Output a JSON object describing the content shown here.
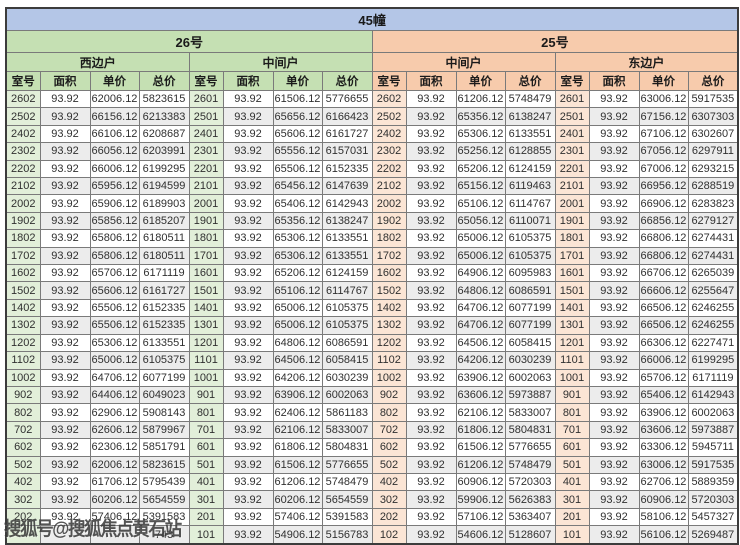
{
  "page": {
    "title": "45幢",
    "watermark": "搜狐号@搜狐焦点黄石站"
  },
  "columns": [
    "室号",
    "面积",
    "单价",
    "总价"
  ],
  "colors": {
    "title_bg": "#b4c6e7",
    "building26_bg": "#c5e0b3",
    "building25_bg": "#f7cbac",
    "room_col_green": "#e2efd9",
    "room_col_peach": "#fbe5d5",
    "stripe_gray": "#ececec"
  },
  "buildings": [
    {
      "label": "26号",
      "groups": [
        {
          "label": "西边户",
          "rows": [
            [
              "2602",
              "93.92",
              "62006.12",
              "5823615"
            ],
            [
              "2502",
              "93.92",
              "66156.12",
              "6213383"
            ],
            [
              "2402",
              "93.92",
              "66106.12",
              "6208687"
            ],
            [
              "2302",
              "93.92",
              "66056.12",
              "6203991"
            ],
            [
              "2202",
              "93.92",
              "66006.12",
              "6199295"
            ],
            [
              "2102",
              "93.92",
              "65956.12",
              "6194599"
            ],
            [
              "2002",
              "93.92",
              "65906.12",
              "6189903"
            ],
            [
              "1902",
              "93.92",
              "65856.12",
              "6185207"
            ],
            [
              "1802",
              "93.92",
              "65806.12",
              "6180511"
            ],
            [
              "1702",
              "93.92",
              "65806.12",
              "6180511"
            ],
            [
              "1602",
              "93.92",
              "65706.12",
              "6171119"
            ],
            [
              "1502",
              "93.92",
              "65606.12",
              "6161727"
            ],
            [
              "1402",
              "93.92",
              "65506.12",
              "6152335"
            ],
            [
              "1302",
              "93.92",
              "65506.12",
              "6152335"
            ],
            [
              "1202",
              "93.92",
              "65306.12",
              "6133551"
            ],
            [
              "1102",
              "93.92",
              "65006.12",
              "6105375"
            ],
            [
              "1002",
              "93.92",
              "64706.12",
              "6077199"
            ],
            [
              "902",
              "93.92",
              "64406.12",
              "6049023"
            ],
            [
              "802",
              "93.92",
              "62906.12",
              "5908143"
            ],
            [
              "702",
              "93.92",
              "62606.12",
              "5879967"
            ],
            [
              "602",
              "93.92",
              "62306.12",
              "5851791"
            ],
            [
              "502",
              "93.92",
              "62006.12",
              "5823615"
            ],
            [
              "402",
              "93.92",
              "61706.12",
              "5795439"
            ],
            [
              "302",
              "93.92",
              "60206.12",
              "5654559"
            ],
            [
              "202",
              "93.92",
              "57406.12",
              "5391583"
            ],
            [
              "",
              "",
              "",
              "743"
            ]
          ]
        },
        {
          "label": "中间户",
          "rows": [
            [
              "2601",
              "93.92",
              "61506.12",
              "5776655"
            ],
            [
              "2501",
              "93.92",
              "65656.12",
              "6166423"
            ],
            [
              "2401",
              "93.92",
              "65606.12",
              "6161727"
            ],
            [
              "2301",
              "93.92",
              "65556.12",
              "6157031"
            ],
            [
              "2201",
              "93.92",
              "65506.12",
              "6152335"
            ],
            [
              "2101",
              "93.92",
              "65456.12",
              "6147639"
            ],
            [
              "2001",
              "93.92",
              "65406.12",
              "6142943"
            ],
            [
              "1901",
              "93.92",
              "65356.12",
              "6138247"
            ],
            [
              "1801",
              "93.92",
              "65306.12",
              "6133551"
            ],
            [
              "1701",
              "93.92",
              "65306.12",
              "6133551"
            ],
            [
              "1601",
              "93.92",
              "65206.12",
              "6124159"
            ],
            [
              "1501",
              "93.92",
              "65106.12",
              "6114767"
            ],
            [
              "1401",
              "93.92",
              "65006.12",
              "6105375"
            ],
            [
              "1301",
              "93.92",
              "65006.12",
              "6105375"
            ],
            [
              "1201",
              "93.92",
              "64806.12",
              "6086591"
            ],
            [
              "1101",
              "93.92",
              "64506.12",
              "6058415"
            ],
            [
              "1001",
              "93.92",
              "64206.12",
              "6030239"
            ],
            [
              "901",
              "93.92",
              "63906.12",
              "6002063"
            ],
            [
              "801",
              "93.92",
              "62406.12",
              "5861183"
            ],
            [
              "701",
              "93.92",
              "62106.12",
              "5833007"
            ],
            [
              "601",
              "93.92",
              "61806.12",
              "5804831"
            ],
            [
              "501",
              "93.92",
              "61506.12",
              "5776655"
            ],
            [
              "401",
              "93.92",
              "61206.12",
              "5748479"
            ],
            [
              "301",
              "93.92",
              "60206.12",
              "5654559"
            ],
            [
              "201",
              "93.92",
              "57406.12",
              "5391583"
            ],
            [
              "101",
              "93.92",
              "54906.12",
              "5156783"
            ]
          ]
        }
      ]
    },
    {
      "label": "25号",
      "groups": [
        {
          "label": "中间户",
          "rows": [
            [
              "2602",
              "93.92",
              "61206.12",
              "5748479"
            ],
            [
              "2502",
              "93.92",
              "65356.12",
              "6138247"
            ],
            [
              "2402",
              "93.92",
              "65306.12",
              "6133551"
            ],
            [
              "2302",
              "93.92",
              "65256.12",
              "6128855"
            ],
            [
              "2202",
              "93.92",
              "65206.12",
              "6124159"
            ],
            [
              "2102",
              "93.92",
              "65156.12",
              "6119463"
            ],
            [
              "2002",
              "93.92",
              "65106.12",
              "6114767"
            ],
            [
              "1902",
              "93.92",
              "65056.12",
              "6110071"
            ],
            [
              "1802",
              "93.92",
              "65006.12",
              "6105375"
            ],
            [
              "1702",
              "93.92",
              "65006.12",
              "6105375"
            ],
            [
              "1602",
              "93.92",
              "64906.12",
              "6095983"
            ],
            [
              "1502",
              "93.92",
              "64806.12",
              "6086591"
            ],
            [
              "1402",
              "93.92",
              "64706.12",
              "6077199"
            ],
            [
              "1302",
              "93.92",
              "64706.12",
              "6077199"
            ],
            [
              "1202",
              "93.92",
              "64506.12",
              "6058415"
            ],
            [
              "1102",
              "93.92",
              "64206.12",
              "6030239"
            ],
            [
              "1002",
              "93.92",
              "63906.12",
              "6002063"
            ],
            [
              "902",
              "93.92",
              "63606.12",
              "5973887"
            ],
            [
              "802",
              "93.92",
              "62106.12",
              "5833007"
            ],
            [
              "702",
              "93.92",
              "61806.12",
              "5804831"
            ],
            [
              "602",
              "93.92",
              "61506.12",
              "5776655"
            ],
            [
              "502",
              "93.92",
              "61206.12",
              "5748479"
            ],
            [
              "402",
              "93.92",
              "60906.12",
              "5720303"
            ],
            [
              "302",
              "93.92",
              "59906.12",
              "5626383"
            ],
            [
              "202",
              "93.92",
              "57106.12",
              "5363407"
            ],
            [
              "102",
              "93.92",
              "54606.12",
              "5128607"
            ]
          ]
        },
        {
          "label": "东边户",
          "rows": [
            [
              "2601",
              "93.92",
              "63006.12",
              "5917535"
            ],
            [
              "2501",
              "93.92",
              "67156.12",
              "6307303"
            ],
            [
              "2401",
              "93.92",
              "67106.12",
              "6302607"
            ],
            [
              "2301",
              "93.92",
              "67056.12",
              "6297911"
            ],
            [
              "2201",
              "93.92",
              "67006.12",
              "6293215"
            ],
            [
              "2101",
              "93.92",
              "66956.12",
              "6288519"
            ],
            [
              "2001",
              "93.92",
              "66906.12",
              "6283823"
            ],
            [
              "1901",
              "93.92",
              "66856.12",
              "6279127"
            ],
            [
              "1801",
              "93.92",
              "66806.12",
              "6274431"
            ],
            [
              "1701",
              "93.92",
              "66806.12",
              "6274431"
            ],
            [
              "1601",
              "93.92",
              "66706.12",
              "6265039"
            ],
            [
              "1501",
              "93.92",
              "66606.12",
              "6255647"
            ],
            [
              "1401",
              "93.92",
              "66506.12",
              "6246255"
            ],
            [
              "1301",
              "93.92",
              "66506.12",
              "6246255"
            ],
            [
              "1201",
              "93.92",
              "66306.12",
              "6227471"
            ],
            [
              "1101",
              "93.92",
              "66006.12",
              "6199295"
            ],
            [
              "1001",
              "93.92",
              "65706.12",
              "6171119"
            ],
            [
              "901",
              "93.92",
              "65406.12",
              "6142943"
            ],
            [
              "801",
              "93.92",
              "63906.12",
              "6002063"
            ],
            [
              "701",
              "93.92",
              "63606.12",
              "5973887"
            ],
            [
              "601",
              "93.92",
              "63306.12",
              "5945711"
            ],
            [
              "501",
              "93.92",
              "63006.12",
              "5917535"
            ],
            [
              "401",
              "93.92",
              "62706.12",
              "5889359"
            ],
            [
              "301",
              "93.92",
              "60906.12",
              "5720303"
            ],
            [
              "201",
              "93.92",
              "58106.12",
              "5457327"
            ],
            [
              "101",
              "93.92",
              "56106.12",
              "5269487"
            ]
          ]
        }
      ]
    }
  ]
}
